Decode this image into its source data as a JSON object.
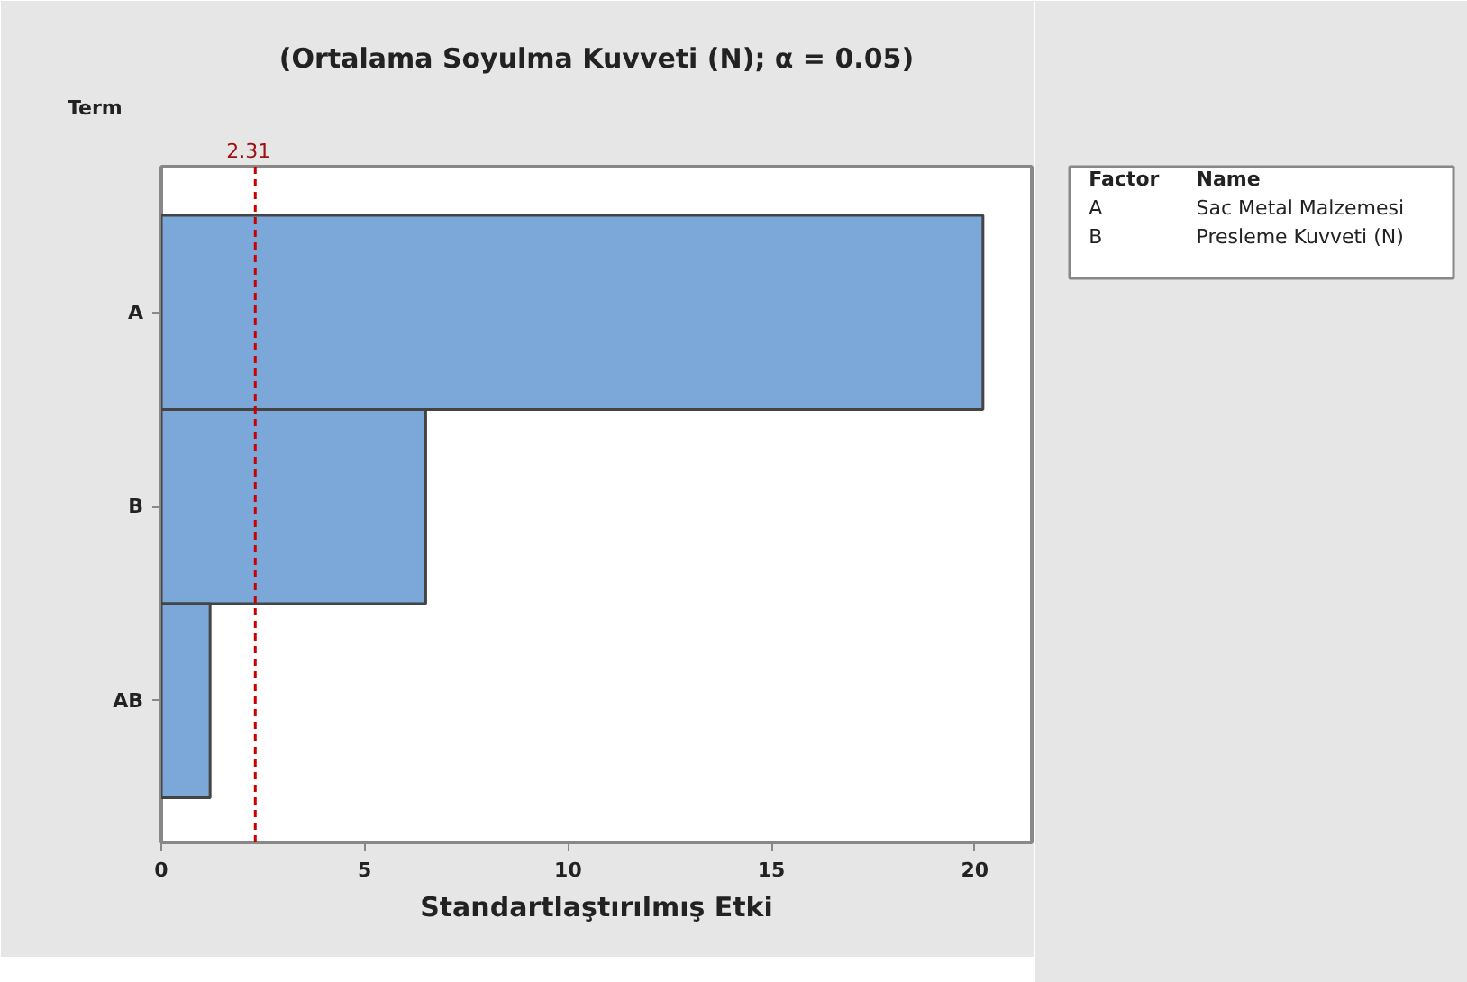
{
  "chart_data": [
    {
      "type": "bar",
      "orientation": "horizontal",
      "title": "(Ortalama Soyulma Kuvveti (N); α = 0.05)",
      "xlabel": "Standartlaştırılmış Etki",
      "ylabel": "Term",
      "categories": [
        "A",
        "B",
        "AB"
      ],
      "values": [
        20.2,
        6.5,
        1.2
      ],
      "color": "#7ba7d9",
      "xlim": [
        0,
        21.4
      ],
      "xticks": [
        0,
        5,
        10,
        15,
        20
      ],
      "grid": false,
      "ref_lines": [
        {
          "axis": "x",
          "value": 2.31,
          "label": "2.31",
          "color": "#cc0000",
          "line_style": "dashed"
        }
      ]
    },
    {
      "type": "other",
      "annotations": [
        "Factor",
        "Name",
        "A",
        "Sac Metal Malzemesi",
        "B",
        "Presleme Kuvveti (N)"
      ]
    }
  ]
}
